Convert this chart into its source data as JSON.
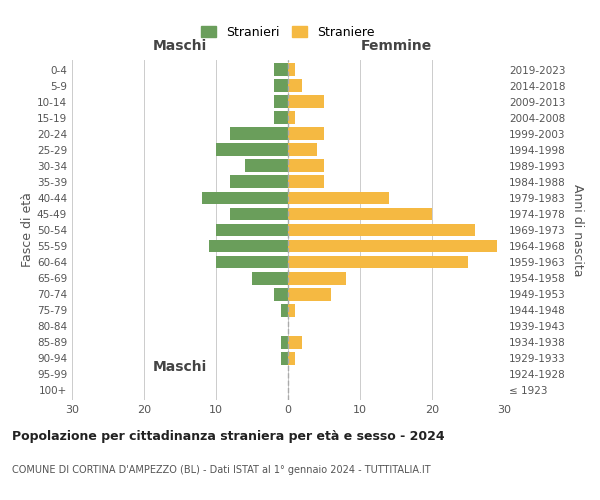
{
  "age_groups": [
    "100+",
    "95-99",
    "90-94",
    "85-89",
    "80-84",
    "75-79",
    "70-74",
    "65-69",
    "60-64",
    "55-59",
    "50-54",
    "45-49",
    "40-44",
    "35-39",
    "30-34",
    "25-29",
    "20-24",
    "15-19",
    "10-14",
    "5-9",
    "0-4"
  ],
  "birth_years": [
    "≤ 1923",
    "1924-1928",
    "1929-1933",
    "1934-1938",
    "1939-1943",
    "1944-1948",
    "1949-1953",
    "1954-1958",
    "1959-1963",
    "1964-1968",
    "1969-1973",
    "1974-1978",
    "1979-1983",
    "1984-1988",
    "1989-1993",
    "1994-1998",
    "1999-2003",
    "2004-2008",
    "2009-2013",
    "2014-2018",
    "2019-2023"
  ],
  "stranieri": [
    0,
    0,
    1,
    1,
    0,
    1,
    2,
    5,
    10,
    11,
    10,
    8,
    12,
    8,
    6,
    10,
    8,
    2,
    2,
    2,
    2
  ],
  "straniere": [
    0,
    0,
    1,
    2,
    0,
    1,
    6,
    8,
    25,
    29,
    26,
    20,
    14,
    5,
    5,
    4,
    5,
    1,
    5,
    2,
    1
  ],
  "color_stranieri": "#6a9e5b",
  "color_straniere": "#f5b942",
  "xlim": 30,
  "title": "Popolazione per cittadinanza straniera per età e sesso - 2024",
  "subtitle": "COMUNE DI CORTINA D'AMPEZZO (BL) - Dati ISTAT al 1° gennaio 2024 - TUTTITALIA.IT",
  "xlabel_left": "Maschi",
  "xlabel_right": "Femmine",
  "ylabel_left": "Fasce di età",
  "ylabel_right": "Anni di nascita",
  "legend_stranieri": "Stranieri",
  "legend_straniere": "Straniere",
  "bg_color": "#ffffff",
  "grid_color": "#cccccc",
  "bar_height": 0.8,
  "xtick_step": 10
}
